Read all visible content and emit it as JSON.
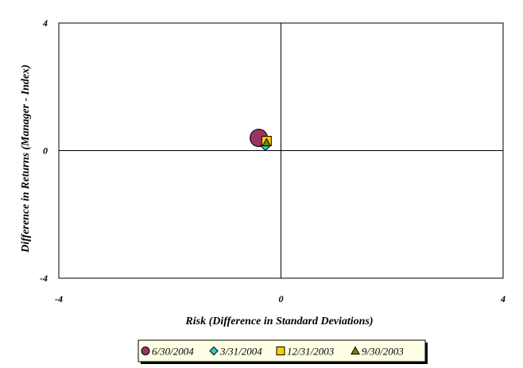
{
  "chart_data": {
    "type": "scatter",
    "title": "",
    "xlabel": "Risk (Difference in Standard Deviations)",
    "ylabel": "Difference in Returns (Manager - Index)",
    "xlim": [
      -4,
      4
    ],
    "ylim": [
      -4,
      4
    ],
    "x_ticks": [
      "-4",
      "0",
      "4"
    ],
    "y_ticks": [
      "4",
      "0",
      "-4"
    ],
    "grid": false,
    "reference_lines": {
      "x": 0,
      "y": 0
    },
    "legend_position": "bottom",
    "series": [
      {
        "name": "6/30/2004",
        "marker": "circle",
        "color": "#993366",
        "x": [
          -0.4
        ],
        "y": [
          0.4
        ]
      },
      {
        "name": "3/31/2004",
        "marker": "diamond",
        "color": "#33CCCC",
        "x": [
          -0.28
        ],
        "y": [
          0.15
        ]
      },
      {
        "name": "12/31/2003",
        "marker": "square",
        "color": "#FFCC00",
        "x": [
          -0.26
        ],
        "y": [
          0.3
        ]
      },
      {
        "name": "9/30/2003",
        "marker": "triangle",
        "color": "#808000",
        "x": [
          -0.26
        ],
        "y": [
          0.25
        ]
      }
    ]
  }
}
